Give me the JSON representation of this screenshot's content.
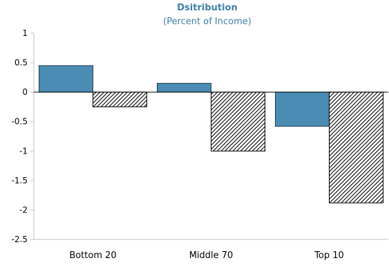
{
  "colors": {
    "series_1": "#4a8cb3",
    "series_1_border": "#1f3d52",
    "series_2_hatch": "#000000",
    "title": "#3f7fa8",
    "axis": "#bfbfbf",
    "zero_line": "#000000"
  },
  "chart_data": {
    "type": "bar",
    "title": "Dsitribution",
    "subtitle": "(Percent of Income)",
    "xlabel": "",
    "ylabel": "",
    "categories": [
      "Bottom 20",
      "Middle 70",
      "Top 10"
    ],
    "series": [
      {
        "values": [
          0.45,
          0.15,
          -0.58
        ],
        "fill": "solid"
      },
      {
        "values": [
          -0.25,
          -1.0,
          -1.88
        ],
        "fill": "hatched"
      }
    ],
    "ylim": [
      -2.5,
      1
    ],
    "yticks": [
      1,
      0.5,
      0,
      -0.5,
      -1,
      -1.5,
      -2,
      -2.5
    ],
    "ytick_labels": [
      "1",
      "0.5",
      "0",
      "-0.5",
      "-1",
      "-1.5",
      "-2",
      "-2.5"
    ],
    "grid": false,
    "legend": "none"
  }
}
